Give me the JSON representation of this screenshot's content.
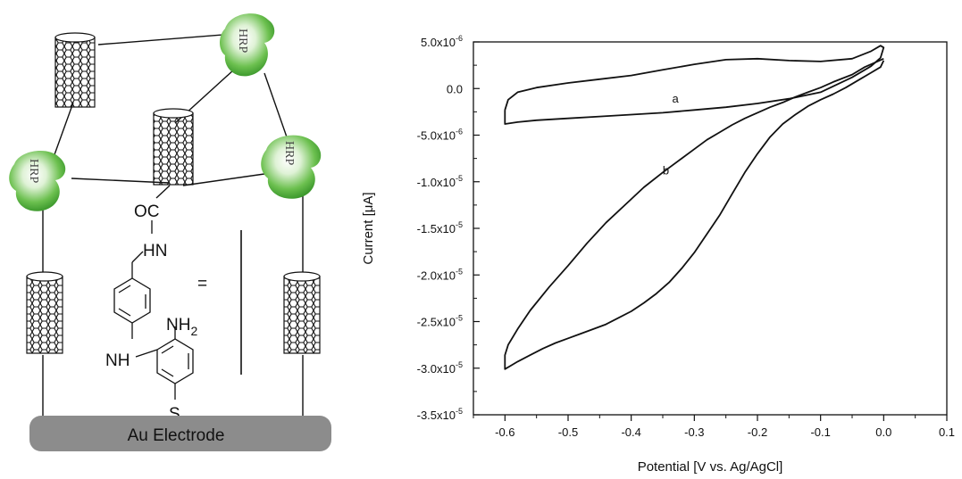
{
  "scheme": {
    "enzyme_label": "HRP",
    "electrode_label": "Au Electrode",
    "molecule": {
      "carbonyl": "OC",
      "amide": "HN",
      "amine": "NH",
      "amine2": "NH",
      "amine2_sub": "2",
      "sulfur": "S",
      "equals": "="
    }
  },
  "chart_data": {
    "type": "line",
    "xlabel": "Potential [V vs. Ag/AgCl]",
    "ylabel": "Current [μA]",
    "xlim": [
      -0.65,
      0.1
    ],
    "ylim": [
      -3.5e-05,
      5e-06
    ],
    "xticks": [
      {
        "value": -0.6,
        "label": "-0.6"
      },
      {
        "value": -0.5,
        "label": "-0.5"
      },
      {
        "value": -0.4,
        "label": "-0.4"
      },
      {
        "value": -0.3,
        "label": "-0.3"
      },
      {
        "value": -0.2,
        "label": "-0.2"
      },
      {
        "value": -0.1,
        "label": "-0.1"
      },
      {
        "value": 0.0,
        "label": "0.0"
      },
      {
        "value": 0.1,
        "label": "0.1"
      }
    ],
    "yticks": [
      {
        "value": 5e-06,
        "mantissa": "5.0x10",
        "exp": "-6"
      },
      {
        "value": 0.0,
        "mantissa": "0.0",
        "exp": ""
      },
      {
        "value": -5e-06,
        "mantissa": "-5.0x10",
        "exp": "-6"
      },
      {
        "value": -1e-05,
        "mantissa": "-1.0x10",
        "exp": "-5"
      },
      {
        "value": -1.5e-05,
        "mantissa": "-1.5x10",
        "exp": "-5"
      },
      {
        "value": -2e-05,
        "mantissa": "-2.0x10",
        "exp": "-5"
      },
      {
        "value": -2.5e-05,
        "mantissa": "-2.5x10",
        "exp": "-5"
      },
      {
        "value": -3e-05,
        "mantissa": "-3.0x10",
        "exp": "-5"
      },
      {
        "value": -3.5e-05,
        "mantissa": "-3.5x10",
        "exp": "-5"
      }
    ],
    "grid": false,
    "series": [
      {
        "label": "a",
        "label_at": {
          "x": -0.33,
          "y": -1.5e-06
        },
        "x": [
          -0.6,
          -0.595,
          -0.58,
          -0.55,
          -0.5,
          -0.45,
          -0.4,
          -0.35,
          -0.3,
          -0.25,
          -0.2,
          -0.15,
          -0.1,
          -0.05,
          -0.02,
          -0.005,
          0.0,
          -0.005,
          -0.02,
          -0.05,
          -0.1,
          -0.15,
          -0.2,
          -0.25,
          -0.3,
          -0.35,
          -0.4,
          -0.45,
          -0.5,
          -0.55,
          -0.58,
          -0.6,
          -0.6
        ],
        "y": [
          -2.3e-06,
          -1.2e-06,
          -4e-07,
          1e-07,
          6e-07,
          1e-06,
          1.4e-06,
          2e-06,
          2.6e-06,
          3.1e-06,
          3.2e-06,
          3e-06,
          2.9e-06,
          3.2e-06,
          4e-06,
          4.6e-06,
          4.4e-06,
          3.3e-06,
          2.4e-06,
          1.2e-06,
          -4e-07,
          -1.1e-06,
          -1.6e-06,
          -2e-06,
          -2.3e-06,
          -2.6e-06,
          -2.8e-06,
          -3e-06,
          -3.2e-06,
          -3.4e-06,
          -3.6e-06,
          -3.8e-06,
          -2.3e-06
        ]
      },
      {
        "label": "b",
        "label_at": {
          "x": -0.345,
          "y": -9.2e-06
        },
        "x": [
          0.0,
          -0.005,
          -0.02,
          -0.04,
          -0.06,
          -0.08,
          -0.1,
          -0.12,
          -0.14,
          -0.16,
          -0.18,
          -0.2,
          -0.22,
          -0.24,
          -0.26,
          -0.28,
          -0.3,
          -0.32,
          -0.34,
          -0.36,
          -0.38,
          -0.4,
          -0.42,
          -0.44,
          -0.46,
          -0.48,
          -0.5,
          -0.52,
          -0.54,
          -0.56,
          -0.58,
          -0.59,
          -0.6,
          -0.6,
          -0.595,
          -0.58,
          -0.56,
          -0.53,
          -0.5,
          -0.47,
          -0.44,
          -0.41,
          -0.38,
          -0.35,
          -0.32,
          -0.3,
          -0.28,
          -0.26,
          -0.24,
          -0.22,
          -0.2,
          -0.18,
          -0.16,
          -0.14,
          -0.12,
          -0.1,
          -0.08,
          -0.05,
          -0.03,
          -0.01,
          0.0
        ],
        "y": [
          3e-06,
          2.3e-06,
          1.7e-06,
          9e-07,
          1e-07,
          -6e-07,
          -1.2e-06,
          -1.9e-06,
          -2.8e-06,
          -3.8e-06,
          -5.2e-06,
          -7e-06,
          -9e-06,
          -1.13e-05,
          -1.36e-05,
          -1.56e-05,
          -1.76e-05,
          -1.93e-05,
          -2.08e-05,
          -2.2e-05,
          -2.3e-05,
          -2.39e-05,
          -2.46e-05,
          -2.53e-05,
          -2.58e-05,
          -2.63e-05,
          -2.68e-05,
          -2.73e-05,
          -2.79e-05,
          -2.86e-05,
          -2.93e-05,
          -2.97e-05,
          -3.01e-05,
          -2.86e-05,
          -2.75e-05,
          -2.58e-05,
          -2.38e-05,
          -2.13e-05,
          -1.9e-05,
          -1.66e-05,
          -1.44e-05,
          -1.25e-05,
          -1.06e-05,
          -9e-06,
          -7.5e-06,
          -6.5e-06,
          -5.5e-06,
          -4.7e-06,
          -3.9e-06,
          -3.2e-06,
          -2.6e-06,
          -2e-06,
          -1.5e-06,
          -9e-07,
          -4e-07,
          1e-07,
          7e-07,
          1.5e-06,
          2.3e-06,
          2.9e-06,
          3.2e-06
        ]
      }
    ]
  }
}
